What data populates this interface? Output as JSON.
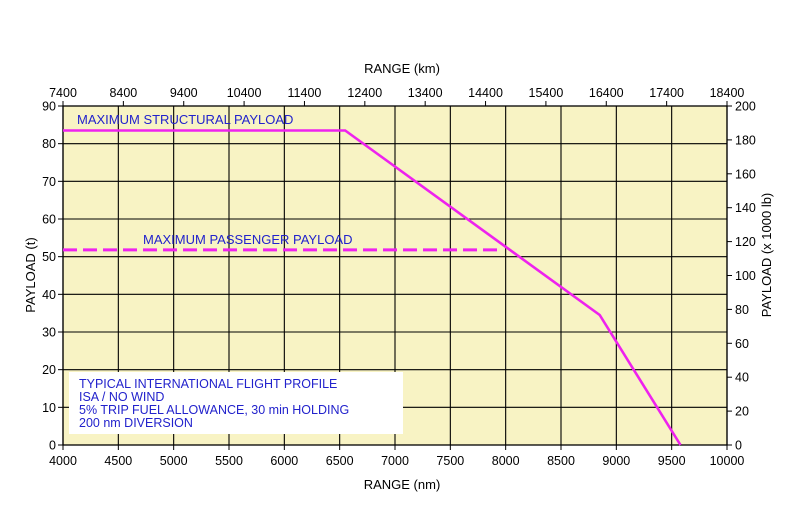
{
  "chart_data": {
    "type": "line",
    "colors": {
      "plot_background": "#f8f3c4",
      "grid": "#000000",
      "payload_line": "#ee22ee",
      "annotation_text": "#2222cc"
    },
    "x_bottom": {
      "label": "RANGE (nm)",
      "range": [
        4000,
        10000
      ],
      "ticks": [
        "4000",
        "4500",
        "5000",
        "5500",
        "6000",
        "6500",
        "7000",
        "7500",
        "8000",
        "8500",
        "9000",
        "9500",
        "10000"
      ]
    },
    "x_top": {
      "label": "RANGE (km)",
      "ticks": [
        "7400",
        "8400",
        "9400",
        "10400",
        "11400",
        "12400",
        "13400",
        "14400",
        "15400",
        "16400",
        "17400",
        "18400"
      ]
    },
    "y_left": {
      "label": "PAYLOAD (t)",
      "range": [
        0,
        90
      ],
      "ticks": [
        "0",
        "10",
        "20",
        "30",
        "40",
        "50",
        "60",
        "70",
        "80",
        "90"
      ]
    },
    "y_right": {
      "label": "PAYLOAD (x 1000 lb)",
      "ticks": [
        "0",
        "20",
        "40",
        "60",
        "80",
        "100",
        "120",
        "140",
        "160",
        "180",
        "200"
      ]
    },
    "grid": true,
    "series": [
      {
        "style": "solid",
        "x": [
          4000,
          6550,
          8850,
          9580
        ],
        "y": [
          83.5,
          83.5,
          34.5,
          0
        ]
      },
      {
        "style": "dashed",
        "x": [
          4000,
          7950
        ],
        "y": [
          51.8,
          51.8
        ]
      }
    ],
    "annotations": {
      "max_structural": "MAXIMUM STRUCTURAL PAYLOAD",
      "max_passenger": "MAXIMUM PASSENGER PAYLOAD",
      "profile_lines": [
        "TYPICAL INTERNATIONAL FLIGHT PROFILE",
        "ISA / NO WIND",
        "5% TRIP FUEL ALLOWANCE, 30 min HOLDING",
        "200 nm DIVERSION"
      ]
    }
  }
}
